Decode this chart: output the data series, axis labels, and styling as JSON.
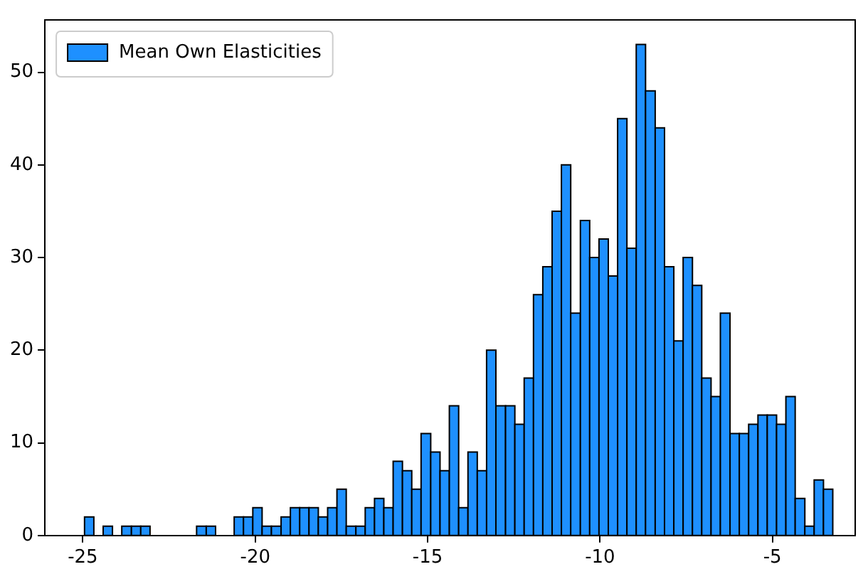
{
  "chart_data": {
    "type": "histogram",
    "bins": [
      -24.95,
      -24.68,
      -24.41,
      -24.14,
      -23.87,
      -23.59,
      -23.32,
      -23.05,
      -21.7,
      -21.42,
      -21.15,
      -20.61,
      -20.34,
      -20.07,
      -19.8,
      -19.53,
      -19.25,
      -18.98,
      -18.71,
      -18.44,
      -18.17,
      -17.9,
      -17.63,
      -17.36,
      -17.08,
      -16.81,
      -16.54,
      -16.27,
      -16.0,
      -15.73,
      -15.46,
      -15.19,
      -14.91,
      -14.64,
      -14.37,
      -14.1,
      -13.83,
      -13.56,
      -13.29,
      -13.02,
      -12.74,
      -12.47,
      -12.2,
      -11.93,
      -11.66,
      -11.39,
      -11.12,
      -10.85,
      -10.57,
      -10.3,
      -10.03,
      -9.76,
      -9.49,
      -9.22,
      -8.95,
      -8.68,
      -8.4,
      -8.13,
      -7.86,
      -7.59,
      -7.32,
      -7.05,
      -6.78,
      -6.51,
      -6.23,
      -5.96,
      -5.69,
      -5.42,
      -5.15,
      -4.88,
      -4.61,
      -4.34,
      -4.06,
      -3.79,
      -3.52,
      -3.25
    ],
    "series": [
      {
        "name": "Mean Own Elasticities",
        "color": "#1e90ff",
        "values": [
          2,
          0,
          1,
          0,
          1,
          1,
          1,
          0,
          1,
          1,
          0,
          2,
          2,
          3,
          1,
          1,
          2,
          3,
          3,
          3,
          2,
          3,
          5,
          1,
          1,
          3,
          4,
          3,
          8,
          7,
          5,
          11,
          9,
          7,
          14,
          3,
          9,
          7,
          20,
          14,
          14,
          12,
          17,
          26,
          29,
          35,
          40,
          24,
          34,
          30,
          32,
          28,
          45,
          31,
          53,
          48,
          44,
          29,
          21,
          30,
          27,
          17,
          15,
          24,
          11,
          11,
          12,
          13,
          13,
          12,
          15,
          4,
          1,
          6,
          5
        ]
      }
    ],
    "xlim": [
      -26.1,
      -2.6
    ],
    "xticks": [
      -25,
      -20,
      -15,
      -10,
      -5
    ],
    "ylim": [
      0,
      55.65
    ],
    "yticks": [
      0,
      10,
      20,
      30,
      40,
      50
    ],
    "grid": false,
    "legend": "top left"
  }
}
